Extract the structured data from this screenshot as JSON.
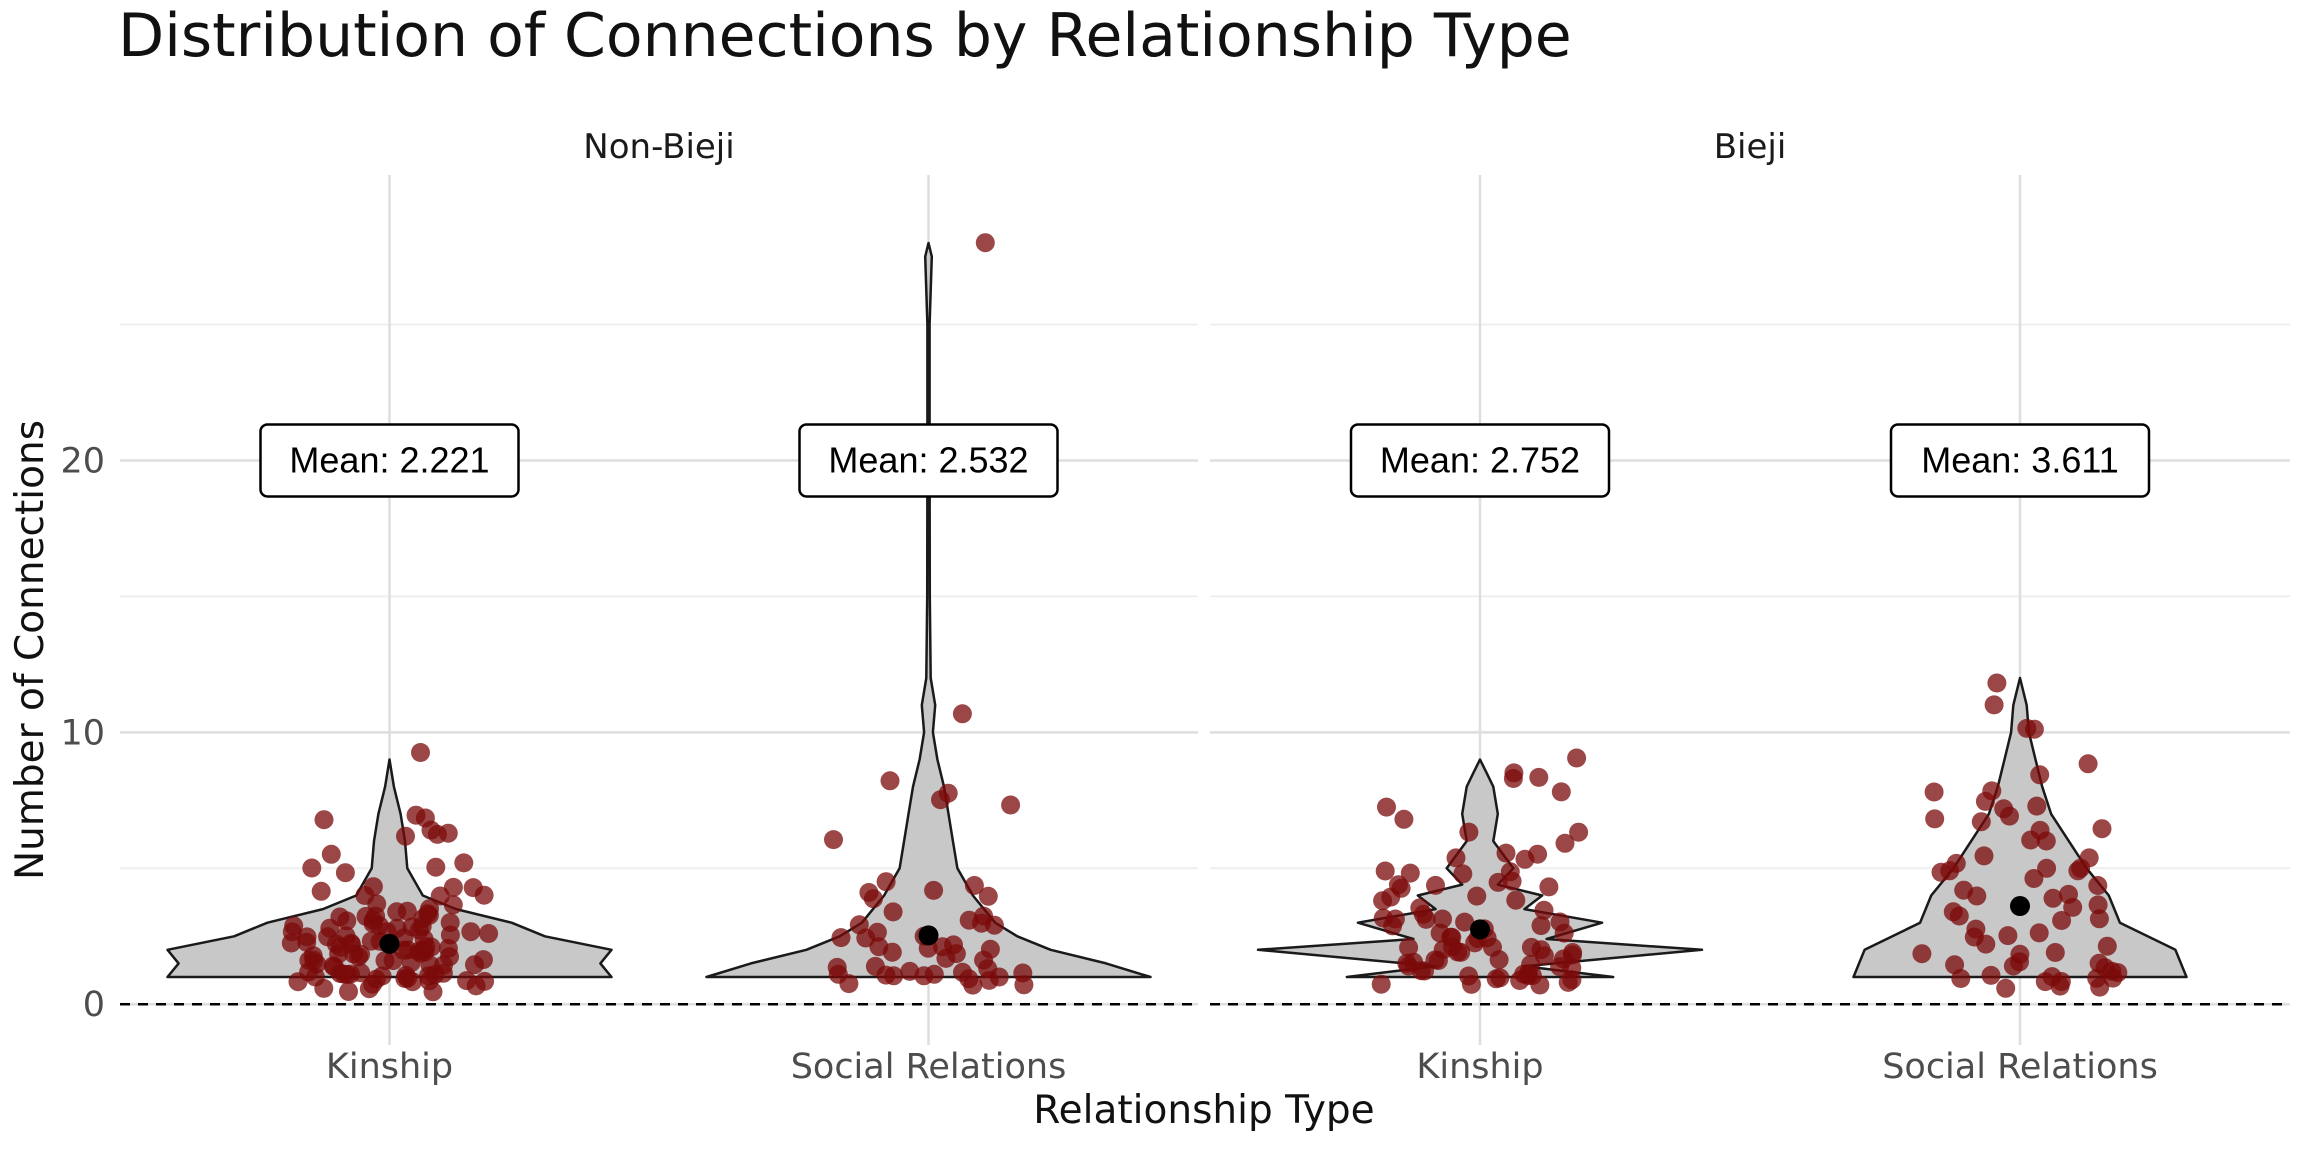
{
  "chart_data": {
    "type": "violin",
    "title": "Distribution of Connections by Relationship Type",
    "xlabel": "Relationship Type",
    "ylabel": "Number of Connections",
    "ylim": [
      -1.5,
      30.5
    ],
    "yticks": [
      0,
      10,
      20
    ],
    "reference_line": {
      "y": 0,
      "style": "dashed"
    },
    "grid": true,
    "colors": {
      "violin_fill": "#c8c8c8",
      "points": "#7b0a0a",
      "mean_dot": "#000000"
    },
    "panels": [
      {
        "name": "Non-Bieji",
        "categories": [
          "Kinship",
          "Social Relations"
        ],
        "groups": [
          {
            "category": "Kinship",
            "mean": 2.221,
            "mean_label": "Mean: 2.221",
            "density": [
              [
                1,
                1.0
              ],
              [
                1.5,
                0.95
              ],
              [
                2,
                1.0
              ],
              [
                2.5,
                0.7
              ],
              [
                3,
                0.55
              ],
              [
                3.5,
                0.3
              ],
              [
                4,
                0.15
              ],
              [
                5,
                0.08
              ],
              [
                6,
                0.07
              ],
              [
                7,
                0.05
              ],
              [
                8,
                0.02
              ],
              [
                9,
                0.0
              ]
            ],
            "points": [
              9.2,
              7.1,
              6.9,
              6.9,
              6.5,
              6.2,
              6.2,
              6.1,
              5.6,
              5.3,
              5.0,
              5.0,
              4.8,
              4.4,
              4.3,
              4.2,
              4.1,
              4.0,
              4.0,
              3.9,
              3.8,
              3.6,
              3.5,
              3.4,
              3.3,
              3.3,
              3.2,
              3.2,
              3.1,
              3.1,
              3.1,
              3.0,
              3.0,
              3.0,
              3.0,
              2.9,
              2.9,
              2.9,
              2.9,
              2.8,
              2.8,
              2.8,
              2.7,
              2.7,
              2.7,
              2.6,
              2.6,
              2.6,
              2.5,
              2.5,
              2.5,
              2.4,
              2.4,
              2.4,
              2.3,
              2.3,
              2.3,
              2.2,
              2.2,
              2.2,
              2.1,
              2.1,
              2.1,
              2.0,
              2.0,
              2.0,
              2.0,
              1.9,
              1.9,
              1.9,
              1.8,
              1.8,
              1.8,
              1.7,
              1.7,
              1.7,
              1.6,
              1.6,
              1.6,
              1.5,
              1.5,
              1.5,
              1.5,
              1.4,
              1.4,
              1.4,
              1.3,
              1.3,
              1.3,
              1.2,
              1.2,
              1.2,
              1.1,
              1.1,
              1.1,
              1.0,
              1.0,
              1.0,
              1.0,
              0.9,
              0.9,
              0.9,
              0.9,
              0.8,
              0.8,
              0.8,
              0.8,
              0.7,
              0.7,
              0.7,
              0.7,
              0.6,
              0.6
            ]
          },
          {
            "category": "Social Relations",
            "mean": 2.532,
            "mean_label": "Mean: 2.532",
            "density": [
              [
                1,
                1.0
              ],
              [
                1.5,
                0.8
              ],
              [
                2,
                0.55
              ],
              [
                2.5,
                0.4
              ],
              [
                3,
                0.3
              ],
              [
                3.5,
                0.25
              ],
              [
                4,
                0.2
              ],
              [
                5,
                0.13
              ],
              [
                6,
                0.11
              ],
              [
                7,
                0.09
              ],
              [
                8,
                0.07
              ],
              [
                9,
                0.04
              ],
              [
                10,
                0.02
              ],
              [
                11,
                0.03
              ],
              [
                12,
                0.01
              ],
              [
                15,
                0.006
              ],
              [
                20,
                0.005
              ],
              [
                25,
                0.005
              ],
              [
                27.5,
                0.015
              ],
              [
                28,
                0.0
              ]
            ],
            "points": [
              28.0,
              10.8,
              8.3,
              7.8,
              7.4,
              7.4,
              6.1,
              4.6,
              4.5,
              4.3,
              4.0,
              4.0,
              3.9,
              3.5,
              3.3,
              3.0,
              3.0,
              2.9,
              2.8,
              2.6,
              2.5,
              2.4,
              2.3,
              2.3,
              2.2,
              2.1,
              2.0,
              2.0,
              1.9,
              1.8,
              1.7,
              1.6,
              1.5,
              1.4,
              1.3,
              1.3,
              1.2,
              1.2,
              1.1,
              1.1,
              1.0,
              1.0,
              1.0,
              1.0,
              0.9,
              0.9,
              0.9,
              0.8,
              0.8
            ]
          }
        ]
      },
      {
        "name": "Bieji",
        "categories": [
          "Kinship",
          "Social Relations"
        ],
        "groups": [
          {
            "category": "Kinship",
            "mean": 2.752,
            "mean_label": "Mean: 2.752",
            "density": [
              [
                1,
                0.6
              ],
              [
                1.4,
                0.2
              ],
              [
                2,
                1.0
              ],
              [
                2.4,
                0.3
              ],
              [
                3,
                0.55
              ],
              [
                3.5,
                0.2
              ],
              [
                4,
                0.28
              ],
              [
                4.4,
                0.08
              ],
              [
                5,
                0.15
              ],
              [
                6,
                0.06
              ],
              [
                7,
                0.08
              ],
              [
                8,
                0.06
              ],
              [
                8.5,
                0.03
              ],
              [
                9,
                0.0
              ]
            ],
            "points": [
              9.1,
              8.4,
              8.3,
              8.3,
              7.8,
              7.3,
              6.7,
              6.3,
              6.2,
              5.9,
              5.7,
              5.6,
              5.3,
              5.2,
              5.0,
              4.9,
              4.8,
              4.7,
              4.5,
              4.4,
              4.3,
              4.3,
              4.2,
              4.2,
              4.1,
              4.0,
              3.8,
              3.7,
              3.6,
              3.5,
              3.3,
              3.2,
              3.1,
              3.1,
              3.0,
              3.0,
              2.9,
              2.9,
              2.8,
              2.8,
              2.7,
              2.6,
              2.5,
              2.5,
              2.4,
              2.3,
              2.3,
              2.2,
              2.2,
              2.1,
              2.1,
              2.0,
              2.0,
              2.0,
              1.9,
              1.9,
              1.8,
              1.8,
              1.7,
              1.7,
              1.6,
              1.6,
              1.5,
              1.5,
              1.4,
              1.4,
              1.3,
              1.3,
              1.2,
              1.2,
              1.1,
              1.1,
              1.0,
              1.0,
              1.0,
              0.9,
              0.9,
              0.9,
              0.8,
              0.8,
              0.8,
              0.7,
              0.7
            ]
          },
          {
            "category": "Social Relations",
            "mean": 3.611,
            "mean_label": "Mean: 3.611",
            "density": [
              [
                1,
                0.75
              ],
              [
                2,
                0.7
              ],
              [
                3,
                0.45
              ],
              [
                4,
                0.4
              ],
              [
                5,
                0.3
              ],
              [
                6,
                0.22
              ],
              [
                7,
                0.14
              ],
              [
                8,
                0.1
              ],
              [
                9,
                0.07
              ],
              [
                10,
                0.04
              ],
              [
                11,
                0.03
              ],
              [
                12,
                0.0
              ]
            ],
            "points": [
              11.7,
              11.0,
              10.2,
              10.0,
              8.7,
              8.3,
              7.8,
              7.7,
              7.6,
              7.4,
              7.3,
              6.9,
              6.9,
              6.8,
              6.4,
              6.3,
              6.0,
              5.9,
              5.4,
              5.3,
              5.2,
              5.1,
              5.1,
              5.0,
              4.9,
              4.8,
              4.6,
              4.4,
              4.3,
              4.1,
              4.0,
              3.9,
              3.8,
              3.5,
              3.3,
              3.2,
              3.1,
              3.0,
              2.8,
              2.6,
              2.5,
              2.4,
              2.2,
              2.1,
              2.0,
              1.9,
              1.8,
              1.7,
              1.6,
              1.5,
              1.4,
              1.3,
              1.2,
              1.1,
              1.1,
              1.0,
              1.0,
              1.0,
              0.9,
              0.9,
              0.8,
              0.8,
              0.7,
              0.7
            ]
          }
        ]
      }
    ]
  }
}
